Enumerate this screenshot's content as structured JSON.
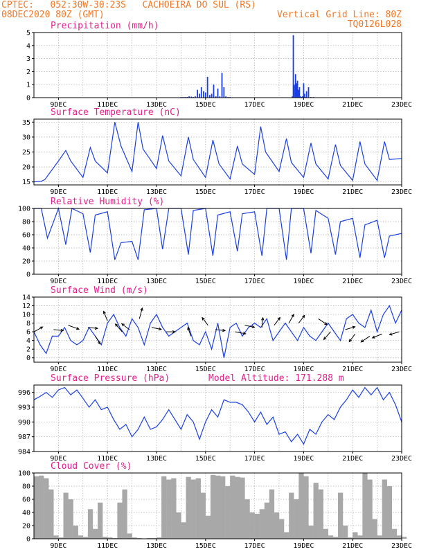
{
  "header": {
    "line1_left": "CPTEC:   052:30W-30:23S   CACHOEIRA DO SUL (RS)",
    "line2_left": "08DEC2020 80Z (GMT)",
    "line2_right": "Vertical Grid Line: 80Z",
    "line3_right": "TQ0126L028"
  },
  "colors": {
    "header": "#f07828",
    "panel_title": "#e0208c",
    "series": "#1a3ee0",
    "cloud_fill": "#a8a8a8",
    "arrow": "#000000"
  },
  "chart_data": [
    {
      "type": "bar",
      "title": "Precipitation  (mm/h)",
      "ylim": [
        0,
        5
      ],
      "yticks": [
        0,
        1,
        2,
        3,
        4,
        5
      ],
      "x_tick_labels": [
        "9DEC",
        "11DEC",
        "13DEC",
        "15DEC",
        "17DEC",
        "19DEC",
        "21DEC",
        "23DEC"
      ],
      "grid": true,
      "x": [
        14.0,
        14.08,
        14.17,
        14.25,
        14.33,
        14.42,
        14.5,
        14.58,
        14.67,
        14.75,
        14.83,
        14.92,
        15.0,
        15.08,
        15.17,
        15.25,
        15.33,
        15.42,
        15.5,
        15.58,
        15.67,
        15.75,
        15.83,
        15.92,
        16.0,
        18.54,
        18.58,
        18.62,
        18.67,
        18.71,
        18.75,
        18.79,
        18.83,
        18.88,
        18.92,
        18.96,
        19.0,
        19.04,
        19.08,
        19.12,
        19.2,
        19.3,
        19.4
      ],
      "values": [
        0.05,
        0.05,
        0.05,
        0.05,
        0.1,
        0.08,
        0.05,
        0.1,
        0.6,
        0.3,
        0.8,
        0.5,
        0.4,
        1.6,
        0.2,
        0.3,
        1.0,
        0.1,
        0.7,
        0.1,
        1.9,
        0.8,
        0.1,
        0.05,
        0.05,
        0.1,
        4.8,
        1.0,
        1.8,
        1.1,
        1.3,
        0.6,
        0.8,
        0.1,
        0.05,
        0.1,
        1.1,
        0.3,
        0.05,
        0.5,
        0.8,
        0.05,
        0.05
      ]
    },
    {
      "type": "line",
      "title": "Surface Temperature  (nC)",
      "ylim": [
        14,
        36
      ],
      "yticks": [
        15,
        20,
        25,
        30,
        35
      ],
      "x_tick_labels": [
        "9DEC",
        "11DEC",
        "13DEC",
        "15DEC",
        "17DEC",
        "19DEC",
        "21DEC",
        "23DEC"
      ],
      "grid": true,
      "x": [
        8.0,
        8.3,
        8.45,
        9.0,
        9.3,
        9.5,
        10.0,
        10.3,
        10.5,
        11.0,
        11.3,
        11.55,
        12.0,
        12.25,
        12.45,
        13.0,
        13.25,
        13.5,
        14.0,
        14.3,
        14.5,
        15.0,
        15.3,
        15.55,
        16.0,
        16.3,
        16.5,
        17.0,
        17.25,
        17.45,
        18.0,
        18.3,
        18.5,
        19.0,
        19.3,
        19.5,
        20.0,
        20.3,
        20.5,
        21.0,
        21.3,
        21.5,
        22.0,
        22.3,
        22.5,
        23.0
      ],
      "values": [
        15.0,
        15.2,
        15.8,
        22.0,
        25.5,
        22.0,
        16.5,
        26.5,
        22.0,
        18.0,
        35.0,
        27.0,
        18.5,
        35.0,
        26.0,
        19.5,
        30.5,
        22.0,
        17.0,
        30.0,
        22.5,
        16.5,
        29.0,
        21.0,
        16.0,
        27.0,
        21.0,
        17.5,
        33.5,
        25.0,
        18.5,
        29.5,
        21.5,
        16.5,
        28.0,
        21.0,
        16.0,
        27.5,
        20.5,
        15.5,
        28.5,
        21.0,
        15.5,
        28.5,
        22.5,
        22.8
      ]
    },
    {
      "type": "line",
      "title": "Relative Humidity  (%)",
      "ylim": [
        0,
        100
      ],
      "yticks": [
        0,
        20,
        40,
        60,
        80,
        100
      ],
      "x_tick_labels": [
        "9DEC",
        "11DEC",
        "13DEC",
        "15DEC",
        "17DEC",
        "19DEC",
        "21DEC",
        "23DEC"
      ],
      "grid": true,
      "x": [
        8.0,
        8.3,
        8.55,
        9.0,
        9.3,
        9.55,
        10.0,
        10.3,
        10.5,
        11.0,
        11.3,
        11.55,
        12.0,
        12.25,
        12.5,
        13.0,
        13.25,
        13.5,
        14.0,
        14.3,
        14.5,
        15.0,
        15.3,
        15.5,
        16.0,
        16.3,
        16.5,
        17.0,
        17.3,
        17.5,
        18.0,
        18.3,
        18.5,
        19.0,
        19.3,
        19.5,
        20.0,
        20.3,
        20.5,
        21.0,
        21.3,
        21.5,
        22.0,
        22.3,
        22.5,
        23.0
      ],
      "values": [
        100,
        100,
        55,
        100,
        45,
        100,
        92,
        33,
        90,
        95,
        22,
        48,
        50,
        22,
        98,
        100,
        38,
        100,
        100,
        30,
        97,
        100,
        28,
        90,
        95,
        35,
        92,
        95,
        28,
        100,
        100,
        22,
        100,
        100,
        32,
        97,
        85,
        30,
        80,
        85,
        25,
        75,
        82,
        25,
        58,
        62
      ]
    },
    {
      "type": "line",
      "title": "Surface Wind  (m/s)",
      "ylim": [
        -1,
        14
      ],
      "yticks": [
        0,
        2,
        4,
        6,
        8,
        10,
        12,
        14
      ],
      "x_tick_labels": [
        "9DEC",
        "11DEC",
        "13DEC",
        "15DEC",
        "17DEC",
        "19DEC",
        "21DEC",
        "23DEC"
      ],
      "grid": true,
      "x": [
        8.0,
        8.25,
        8.5,
        8.75,
        9.0,
        9.25,
        9.5,
        9.75,
        10.0,
        10.25,
        10.5,
        10.75,
        11.0,
        11.25,
        11.5,
        11.75,
        12.0,
        12.25,
        12.5,
        12.75,
        13.0,
        13.25,
        13.5,
        13.75,
        14.0,
        14.25,
        14.5,
        14.75,
        15.0,
        15.25,
        15.5,
        15.75,
        16.0,
        16.25,
        16.5,
        16.75,
        17.0,
        17.25,
        17.5,
        17.75,
        18.0,
        18.25,
        18.5,
        18.75,
        19.0,
        19.25,
        19.5,
        19.75,
        20.0,
        20.25,
        20.5,
        20.75,
        21.0,
        21.25,
        21.5,
        21.75,
        22.0,
        22.25,
        22.5,
        22.75,
        23.0
      ],
      "values": [
        6,
        3,
        1,
        5,
        5,
        7,
        4,
        3,
        4,
        7,
        5,
        3,
        8,
        10,
        7,
        5,
        9,
        7,
        3,
        8,
        10,
        7,
        5,
        6,
        7,
        8,
        4,
        3,
        6,
        2,
        8,
        0,
        7,
        8,
        5,
        7,
        8,
        7,
        9,
        4,
        6,
        8,
        6,
        4,
        7,
        5,
        4,
        6,
        8,
        6,
        4,
        9,
        10,
        8,
        7,
        11,
        6,
        10,
        12,
        8,
        11
      ],
      "vectors": [
        {
          "x": 8.0,
          "speed": 6,
          "u": 0.9,
          "v": -0.5
        },
        {
          "x": 8.8,
          "speed": 6.5,
          "u": 1.0,
          "v": 0.1
        },
        {
          "x": 9.4,
          "speed": 7.5,
          "u": 1.1,
          "v": 0.4
        },
        {
          "x": 10.2,
          "speed": 7,
          "u": 1.0,
          "v": 0.1
        },
        {
          "x": 10.5,
          "speed": 5,
          "u": 0.5,
          "v": 0.8
        },
        {
          "x": 11.0,
          "speed": 8.5,
          "u": -0.4,
          "v": -1.0
        },
        {
          "x": 11.6,
          "speed": 6,
          "u": -0.7,
          "v": -0.8
        },
        {
          "x": 11.9,
          "speed": 6.5,
          "u": -0.8,
          "v": -0.6
        },
        {
          "x": 12.3,
          "speed": 9,
          "u": 0.3,
          "v": -1.1
        },
        {
          "x": 12.8,
          "speed": 7,
          "u": 1.0,
          "v": 0.2
        },
        {
          "x": 13.4,
          "speed": 6,
          "u": 0.9,
          "v": 0.0
        },
        {
          "x": 14.4,
          "speed": 5,
          "u": -0.3,
          "v": -0.9
        },
        {
          "x": 15.1,
          "speed": 7.5,
          "u": -0.6,
          "v": -0.8
        },
        {
          "x": 15.4,
          "speed": 6.5,
          "u": 1.0,
          "v": 0.1
        },
        {
          "x": 16.2,
          "speed": 6,
          "u": 1.1,
          "v": 0.2
        },
        {
          "x": 16.6,
          "speed": 7.5,
          "u": 1.0,
          "v": 0.2
        },
        {
          "x": 17.3,
          "speed": 7,
          "u": 0.1,
          "v": -1.0
        },
        {
          "x": 17.8,
          "speed": 7.5,
          "u": 0.6,
          "v": -0.8
        },
        {
          "x": 18.4,
          "speed": 8,
          "u": 0.5,
          "v": -0.9
        },
        {
          "x": 18.8,
          "speed": 8,
          "u": 0.6,
          "v": -0.8
        },
        {
          "x": 19.6,
          "speed": 9,
          "u": 0.9,
          "v": 0.6
        },
        {
          "x": 20.1,
          "speed": 6,
          "u": -0.7,
          "v": 0.8
        },
        {
          "x": 20.7,
          "speed": 6.5,
          "u": 1.0,
          "v": -0.3
        },
        {
          "x": 21.1,
          "speed": 5.5,
          "u": -0.6,
          "v": 0.8
        },
        {
          "x": 21.7,
          "speed": 5,
          "u": -0.9,
          "v": 0.6
        },
        {
          "x": 22.2,
          "speed": 5.5,
          "u": -1.0,
          "v": 0.4
        },
        {
          "x": 22.9,
          "speed": 6,
          "u": -1.0,
          "v": 0.3
        }
      ]
    },
    {
      "type": "line",
      "title": "Surface Pressure  (hPa)",
      "annotation": "Model Altitude: 171.288  m",
      "ylim": [
        984,
        997.5
      ],
      "yticks": [
        984,
        987,
        990,
        993,
        996
      ],
      "x_tick_labels": [
        "9DEC",
        "11DEC",
        "13DEC",
        "15DEC",
        "17DEC",
        "19DEC",
        "21DEC",
        "23DEC"
      ],
      "grid": true,
      "x": [
        8.0,
        8.25,
        8.5,
        8.75,
        9.0,
        9.25,
        9.5,
        9.75,
        10.0,
        10.25,
        10.5,
        10.75,
        11.0,
        11.25,
        11.5,
        11.75,
        12.0,
        12.25,
        12.5,
        12.75,
        13.0,
        13.25,
        13.5,
        13.75,
        14.0,
        14.25,
        14.5,
        14.75,
        15.0,
        15.25,
        15.5,
        15.75,
        16.0,
        16.25,
        16.5,
        16.75,
        17.0,
        17.25,
        17.5,
        17.75,
        18.0,
        18.25,
        18.5,
        18.75,
        19.0,
        19.25,
        19.5,
        19.75,
        20.0,
        20.25,
        20.5,
        20.75,
        21.0,
        21.25,
        21.5,
        21.75,
        22.0,
        22.25,
        22.5,
        22.75,
        23.0
      ],
      "values": [
        994.5,
        995.2,
        996.0,
        995.0,
        996.5,
        997.0,
        995.5,
        996.5,
        994.8,
        993.0,
        994.5,
        992.5,
        993.0,
        990.5,
        988.5,
        989.5,
        987.0,
        988.5,
        991.0,
        988.5,
        989.0,
        990.5,
        992.5,
        990.5,
        988.5,
        991.5,
        990.0,
        986.5,
        990.0,
        992.5,
        991.0,
        994.5,
        994.0,
        994.0,
        993.5,
        992.0,
        990.0,
        992.0,
        989.5,
        991.0,
        987.5,
        988.0,
        986.0,
        987.5,
        985.5,
        988.5,
        987.5,
        990.0,
        991.5,
        990.5,
        993.0,
        994.5,
        996.5,
        995.0,
        997.0,
        995.5,
        997.0,
        994.5,
        996.0,
        993.5,
        990.0
      ]
    },
    {
      "type": "area",
      "title": "Cloud Cover  (%)",
      "ylim": [
        0,
        100
      ],
      "yticks": [
        0,
        20,
        40,
        60,
        80,
        100
      ],
      "x_tick_labels": [
        "9DEC",
        "11DEC",
        "13DEC",
        "15DEC",
        "17DEC",
        "19DEC",
        "21DEC",
        "23DEC"
      ],
      "grid": true,
      "x": [
        8.0,
        8.2,
        8.4,
        8.6,
        8.8,
        9.0,
        9.2,
        9.4,
        9.6,
        9.8,
        10.0,
        10.2,
        10.4,
        10.6,
        10.8,
        11.0,
        11.2,
        11.4,
        11.6,
        11.8,
        12.0,
        12.2,
        12.4,
        12.6,
        12.8,
        13.0,
        13.2,
        13.4,
        13.6,
        13.8,
        14.0,
        14.2,
        14.4,
        14.6,
        14.8,
        15.0,
        15.2,
        15.4,
        15.6,
        15.8,
        16.0,
        16.2,
        16.4,
        16.6,
        16.8,
        17.0,
        17.2,
        17.4,
        17.6,
        17.8,
        18.0,
        18.2,
        18.4,
        18.6,
        18.8,
        19.0,
        19.2,
        19.4,
        19.6,
        19.8,
        20.0,
        20.2,
        20.4,
        20.6,
        20.8,
        21.0,
        21.2,
        21.4,
        21.6,
        21.8,
        22.0,
        22.2,
        22.4,
        22.6,
        22.8,
        23.0
      ],
      "values": [
        95,
        96,
        92,
        75,
        5,
        2,
        70,
        60,
        20,
        5,
        3,
        45,
        15,
        55,
        3,
        2,
        1,
        55,
        75,
        8,
        2,
        1,
        0,
        1,
        1,
        2,
        95,
        90,
        92,
        40,
        25,
        94,
        90,
        92,
        70,
        35,
        97,
        96,
        95,
        80,
        96,
        94,
        93,
        60,
        40,
        38,
        45,
        55,
        75,
        40,
        30,
        10,
        70,
        60,
        100,
        95,
        20,
        85,
        75,
        15,
        5,
        3,
        70,
        20,
        2,
        10,
        5,
        100,
        90,
        30,
        5,
        90,
        80,
        15,
        5,
        3
      ]
    }
  ]
}
